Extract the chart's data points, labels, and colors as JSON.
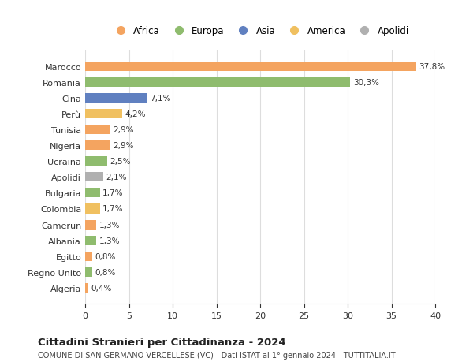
{
  "countries": [
    "Algeria",
    "Regno Unito",
    "Egitto",
    "Albania",
    "Camerun",
    "Colombia",
    "Bulgaria",
    "Apolidi",
    "Ucraina",
    "Nigeria",
    "Tunisia",
    "Perù",
    "Cina",
    "Romania",
    "Marocco"
  ],
  "values": [
    0.4,
    0.8,
    0.8,
    1.3,
    1.3,
    1.7,
    1.7,
    2.1,
    2.5,
    2.9,
    2.9,
    4.2,
    7.1,
    30.3,
    37.8
  ],
  "labels": [
    "0,4%",
    "0,8%",
    "0,8%",
    "1,3%",
    "1,3%",
    "1,7%",
    "1,7%",
    "2,1%",
    "2,5%",
    "2,9%",
    "2,9%",
    "4,2%",
    "7,1%",
    "30,3%",
    "37,8%"
  ],
  "colors": [
    "#f4a460",
    "#8fbc6e",
    "#f4a460",
    "#8fbc6e",
    "#f4a460",
    "#f0c060",
    "#8fbc6e",
    "#b0b0b0",
    "#8fbc6e",
    "#f4a460",
    "#f4a460",
    "#f0c060",
    "#6080c0",
    "#8fbc6e",
    "#f4a460"
  ],
  "legend_labels": [
    "Africa",
    "Europa",
    "Asia",
    "America",
    "Apolidi"
  ],
  "legend_colors": [
    "#f4a460",
    "#8fbc6e",
    "#6080c0",
    "#f0c060",
    "#b0b0b0"
  ],
  "title": "Cittadini Stranieri per Cittadinanza - 2024",
  "subtitle": "COMUNE DI SAN GERMANO VERCELLESE (VC) - Dati ISTAT al 1° gennaio 2024 - TUTTITALIA.IT",
  "xlim": [
    0,
    40
  ],
  "xticks": [
    0,
    5,
    10,
    15,
    20,
    25,
    30,
    35,
    40
  ],
  "background_color": "#ffffff",
  "grid_color": "#dddddd",
  "bar_height": 0.6
}
